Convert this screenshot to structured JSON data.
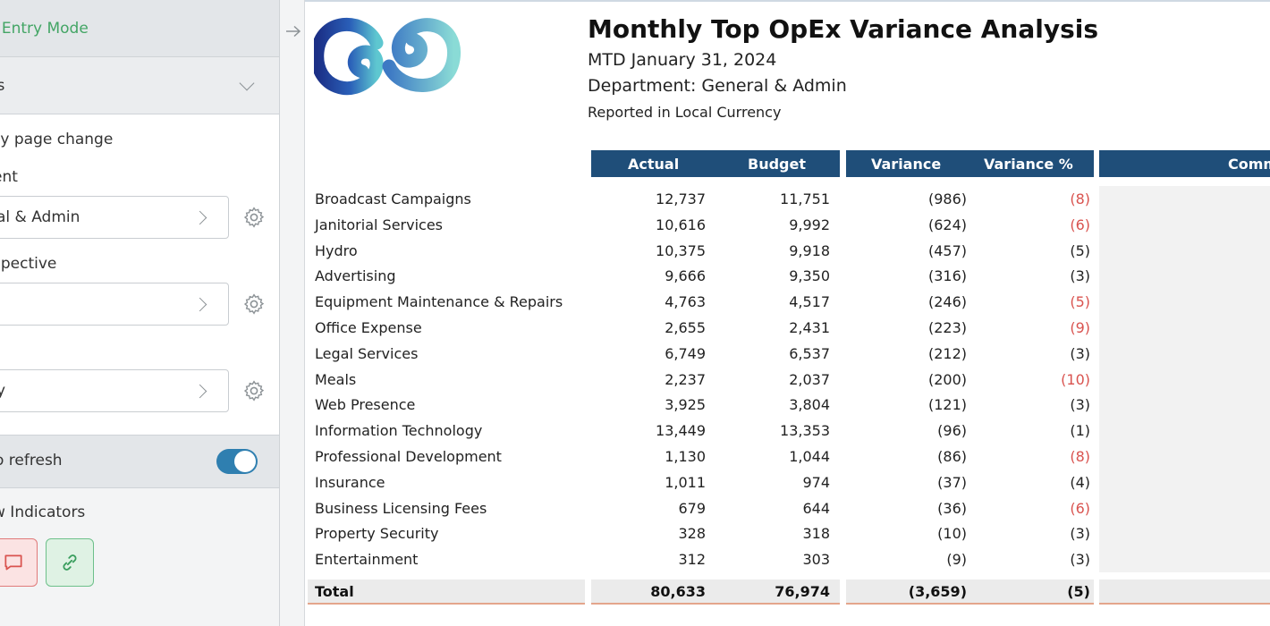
{
  "sidebar": {
    "mode_label": "a Entry Mode",
    "section_label": "es",
    "setting_label": "ay page change",
    "field1_label": "ent",
    "field1_value": "ral & Admin",
    "field2_label": "spective",
    "field2_value": "",
    "field3_label": "",
    "field3_value": "ry",
    "refresh_label": "o refresh",
    "indicators_label": "w Indicators"
  },
  "report": {
    "title": "Monthly Top OpEx Variance Analysis",
    "period": "MTD January 31, 2024",
    "department": "Department: General & Admin",
    "currency_note": "Reported in Local Currency",
    "headers": {
      "actual": "Actual",
      "budget": "Budget",
      "variance": "Variance",
      "variance_pct": "Variance %",
      "comments": "Comm"
    },
    "rows": [
      {
        "name": "Broadcast Campaigns",
        "actual": "12,737",
        "budget": "11,751",
        "variance": "(986)",
        "variance_pct": "(8)",
        "flag": "red"
      },
      {
        "name": "Janitorial Services",
        "actual": "10,616",
        "budget": "9,992",
        "variance": "(624)",
        "variance_pct": "(6)",
        "flag": "red"
      },
      {
        "name": "Hydro",
        "actual": "10,375",
        "budget": "9,918",
        "variance": "(457)",
        "variance_pct": "(5)",
        "flag": "none"
      },
      {
        "name": "Advertising",
        "actual": "9,666",
        "budget": "9,350",
        "variance": "(316)",
        "variance_pct": "(3)",
        "flag": "none"
      },
      {
        "name": "Equipment Maintenance & Repairs",
        "actual": "4,763",
        "budget": "4,517",
        "variance": "(246)",
        "variance_pct": "(5)",
        "flag": "red"
      },
      {
        "name": "Office Expense",
        "actual": "2,655",
        "budget": "2,431",
        "variance": "(223)",
        "variance_pct": "(9)",
        "flag": "red"
      },
      {
        "name": "Legal Services",
        "actual": "6,749",
        "budget": "6,537",
        "variance": "(212)",
        "variance_pct": "(3)",
        "flag": "none"
      },
      {
        "name": "Meals",
        "actual": "2,237",
        "budget": "2,037",
        "variance": "(200)",
        "variance_pct": "(10)",
        "flag": "red"
      },
      {
        "name": "Web Presence",
        "actual": "3,925",
        "budget": "3,804",
        "variance": "(121)",
        "variance_pct": "(3)",
        "flag": "none"
      },
      {
        "name": "Information Technology",
        "actual": "13,449",
        "budget": "13,353",
        "variance": "(96)",
        "variance_pct": "(1)",
        "flag": "none"
      },
      {
        "name": "Professional Development",
        "actual": "1,130",
        "budget": "1,044",
        "variance": "(86)",
        "variance_pct": "(8)",
        "flag": "red"
      },
      {
        "name": "Insurance",
        "actual": "1,011",
        "budget": "974",
        "variance": "(37)",
        "variance_pct": "(4)",
        "flag": "none"
      },
      {
        "name": "Business Licensing Fees",
        "actual": "679",
        "budget": "644",
        "variance": "(36)",
        "variance_pct": "(6)",
        "flag": "red"
      },
      {
        "name": "Property Security",
        "actual": "328",
        "budget": "318",
        "variance": "(10)",
        "variance_pct": "(3)",
        "flag": "none"
      },
      {
        "name": "Entertainment",
        "actual": "312",
        "budget": "303",
        "variance": "(9)",
        "variance_pct": "(3)",
        "flag": "none"
      }
    ],
    "total": {
      "name": "Total",
      "actual": "80,633",
      "budget": "76,974",
      "variance": "(3,659)",
      "variance_pct": "(5)"
    }
  },
  "colors": {
    "header_bg": "#1f4e79",
    "negative_flag": "#d9534f",
    "accent_green": "#43a565",
    "toggle_on": "#2f7fb0"
  },
  "icons": [
    "chevron-down-icon",
    "chevron-right-icon",
    "gear-icon",
    "comment-icon",
    "link-icon",
    "arrow-right-icon",
    "company-logo"
  ]
}
